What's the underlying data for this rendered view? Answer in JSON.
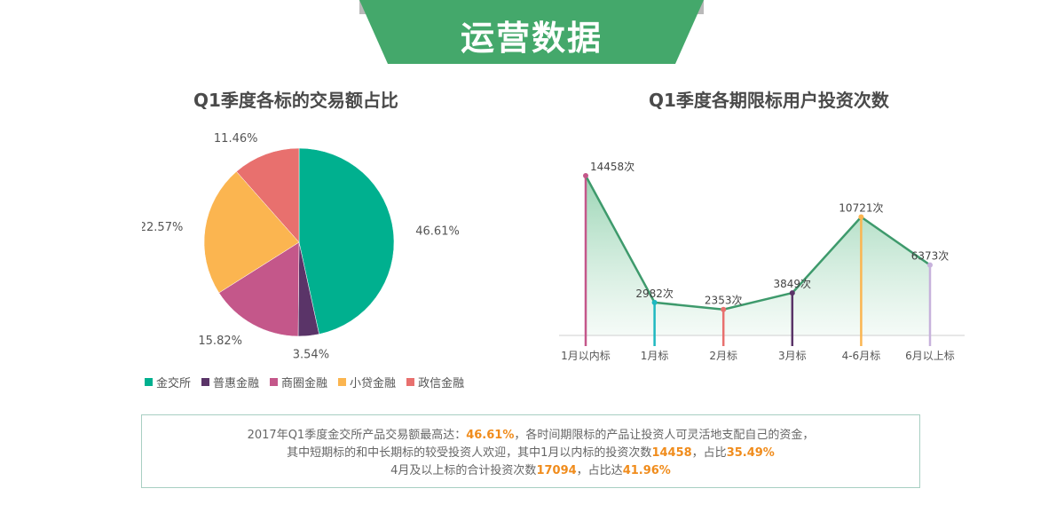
{
  "header": {
    "title": "运营数据"
  },
  "colors": {
    "banner": "#44a86b",
    "banner_edge": "#b9b9b9",
    "highlight": "#f08c1c",
    "line": "#3e9a6c",
    "area_top": "#8fd0ac",
    "area_bottom": "#eef8f2"
  },
  "chart_data": [
    {
      "type": "pie",
      "title": "Q1季度各标的交易额占比",
      "unit": "%",
      "slices": [
        {
          "name": "金交所",
          "value": 46.61,
          "label": "46.61%",
          "color": "#00b08f"
        },
        {
          "name": "普惠金融",
          "value": 3.54,
          "label": "3.54%",
          "color": "#5a3468"
        },
        {
          "name": "商圈金融",
          "value": 15.82,
          "label": "15.82%",
          "color": "#c4578a"
        },
        {
          "name": "小贷金融",
          "value": 22.57,
          "label": "22.57%",
          "color": "#fbb550"
        },
        {
          "name": "政信金融",
          "value": 11.46,
          "label": "11.46%",
          "color": "#e8706e"
        }
      ],
      "legend": "bottom"
    },
    {
      "type": "area",
      "title": "Q1季度各期限标用户投资次数",
      "categories": [
        "1月以内标",
        "1月标",
        "2月标",
        "3月标",
        "4-6月标",
        "6月以上标"
      ],
      "values": [
        14458,
        2982,
        2353,
        3849,
        10721,
        6373
      ],
      "data_labels": [
        "14458次",
        "2982次",
        "2353次",
        "3849次",
        "10721次",
        "6373次"
      ],
      "drop_line_colors": [
        "#c4578a",
        "#1fb8c0",
        "#e8706e",
        "#5a3468",
        "#fbb550",
        "#c7b2dc"
      ],
      "ylim": [
        0,
        15500
      ],
      "grid": false
    }
  ],
  "summary": {
    "line1_a": "2017年Q1季度金交所产品交易额最高达：",
    "line1_b": "46.61%",
    "line1_c": "，各时间期限标的产品让投资人可灵活地支配自己的资金，",
    "line2_a": "其中短期标的和中长期标的较受投资人欢迎，其中1月以内标的投资次数",
    "line2_b": "14458",
    "line2_c": "，占比",
    "line2_d": "35.49%",
    "line3_a": "4月及以上标的合计投资次数",
    "line3_b": "17094",
    "line3_c": "，占比达",
    "line3_d": "41.96%"
  }
}
